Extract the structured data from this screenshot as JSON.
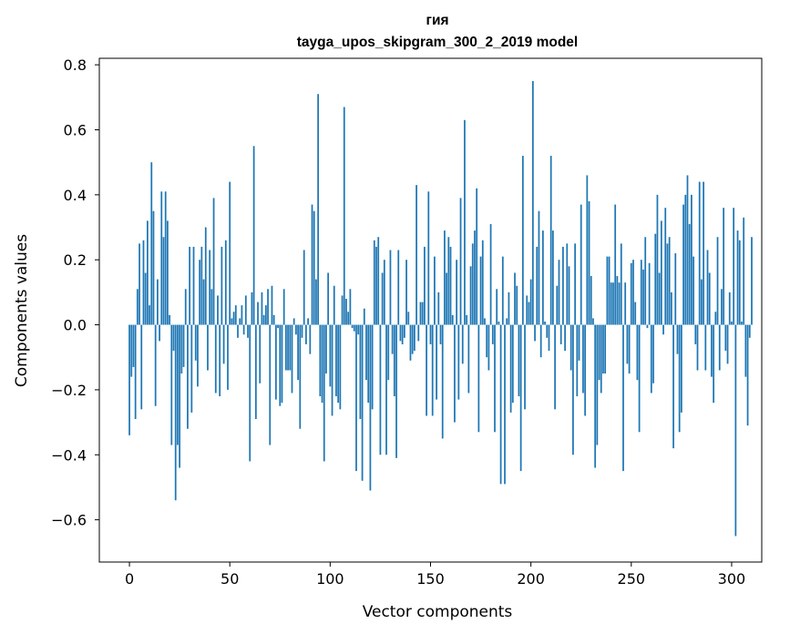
{
  "chart_data": {
    "type": "bar",
    "title": "гия",
    "subtitle": "tayga_upos_skipgram_300_2_2019 model",
    "xlabel": "Vector components",
    "ylabel": "Components values",
    "xlim": [
      -15,
      315
    ],
    "ylim": [
      -0.73,
      0.82
    ],
    "xticks": [
      0,
      50,
      100,
      150,
      200,
      250,
      300
    ],
    "xtick_labels": [
      "0",
      "50",
      "100",
      "150",
      "200",
      "250",
      "300"
    ],
    "yticks": [
      -0.6,
      -0.4,
      -0.2,
      0.0,
      0.2,
      0.4,
      0.6,
      0.8
    ],
    "ytick_labels": [
      "−0.6",
      "−0.4",
      "−0.2",
      "0.0",
      "0.2",
      "0.4",
      "0.6",
      "0.8"
    ],
    "grid": false,
    "bar_color": "#1f77b4",
    "values": [
      -0.34,
      -0.16,
      -0.13,
      -0.29,
      0.11,
      0.25,
      -0.26,
      0.26,
      0.16,
      0.32,
      0.06,
      0.5,
      0.35,
      -0.25,
      0.14,
      -0.05,
      0.41,
      0.27,
      0.41,
      0.32,
      0.03,
      -0.37,
      -0.08,
      -0.54,
      -0.37,
      -0.44,
      -0.15,
      -0.13,
      0.11,
      -0.32,
      0.24,
      -0.27,
      0.24,
      -0.11,
      -0.19,
      0.2,
      0.24,
      0.14,
      0.3,
      -0.14,
      0.23,
      0.11,
      0.39,
      -0.21,
      0.09,
      -0.22,
      0.24,
      -0.12,
      0.26,
      -0.2,
      0.44,
      0.02,
      0.04,
      0.06,
      -0.04,
      0.02,
      0.06,
      -0.03,
      0.09,
      -0.04,
      -0.42,
      0.1,
      0.55,
      -0.29,
      0.07,
      -0.18,
      0.1,
      0.03,
      0.06,
      0.11,
      -0.37,
      0.12,
      0.03,
      -0.23,
      -0.01,
      -0.25,
      -0.24,
      0.11,
      -0.14,
      -0.14,
      -0.14,
      -0.21,
      0.02,
      -0.03,
      -0.17,
      -0.32,
      -0.04,
      0.23,
      -0.06,
      0.02,
      -0.09,
      0.37,
      0.35,
      0.14,
      0.71,
      -0.22,
      -0.24,
      -0.42,
      -0.15,
      0.16,
      -0.19,
      -0.28,
      0.12,
      -0.22,
      -0.24,
      -0.26,
      0.09,
      0.67,
      0.08,
      0.04,
      0.11,
      -0.01,
      -0.02,
      -0.45,
      -0.03,
      -0.29,
      -0.48,
      0.05,
      -0.17,
      -0.24,
      -0.51,
      -0.26,
      0.26,
      0.24,
      0.27,
      -0.4,
      0.16,
      0.2,
      -0.4,
      -0.17,
      0.23,
      -0.09,
      -0.22,
      -0.41,
      0.23,
      -0.05,
      -0.06,
      -0.04,
      0.2,
      0.04,
      -0.11,
      -0.09,
      -0.08,
      0.43,
      -0.05,
      0.07,
      0.07,
      0.24,
      -0.28,
      0.41,
      -0.06,
      -0.28,
      0.21,
      -0.23,
      0.1,
      -0.06,
      -0.35,
      0.29,
      0.16,
      0.27,
      0.24,
      0.03,
      -0.3,
      0.2,
      -0.23,
      0.39,
      -0.12,
      0.63,
      0.03,
      -0.21,
      0.18,
      0.25,
      0.29,
      0.42,
      -0.33,
      0.21,
      0.26,
      0.02,
      -0.1,
      -0.14,
      0.31,
      -0.06,
      -0.33,
      0.11,
      0.01,
      -0.49,
      0.21,
      -0.49,
      0.02,
      0.1,
      -0.27,
      -0.24,
      0.16,
      0.12,
      -0.22,
      -0.45,
      0.52,
      -0.26,
      0.09,
      0.07,
      0.14,
      0.75,
      -0.05,
      0.24,
      0.35,
      -0.1,
      0.29,
      0.01,
      -0.04,
      -0.08,
      0.52,
      0.29,
      -0.26,
      0.12,
      0.2,
      -0.06,
      0.24,
      -0.08,
      0.25,
      0.18,
      -0.14,
      -0.4,
      0.25,
      -0.22,
      -0.11,
      0.37,
      -0.21,
      -0.28,
      0.46,
      0.38,
      0.15,
      0.02,
      -0.44,
      -0.37,
      -0.17,
      -0.21,
      -0.15,
      -0.15,
      0.21,
      0.21,
      0.13,
      0.13,
      0.37,
      0.15,
      0.13,
      0.25,
      -0.45,
      0.13,
      -0.12,
      -0.15,
      0.19,
      0.2,
      0.07,
      -0.17,
      -0.33,
      0.2,
      0.17,
      0.27,
      -0.01,
      0.19,
      -0.21,
      -0.18,
      0.28,
      0.4,
      0.16,
      0.32,
      -0.03,
      0.36,
      0.25,
      0.27,
      0.1,
      -0.38,
      0.22,
      -0.09,
      -0.33,
      -0.27,
      0.37,
      0.4,
      0.46,
      0.31,
      0.4,
      0.21,
      -0.06,
      -0.14,
      0.44,
      0.14,
      0.44,
      -0.14,
      0.23,
      0.16,
      -0.16,
      -0.24,
      0.04,
      0.27,
      -0.14,
      0.11,
      0.36,
      -0.08,
      -0.12,
      0.1,
      0.01,
      0.36,
      -0.65,
      0.29,
      0.26,
      0.01,
      0.33,
      -0.16,
      -0.31,
      -0.04,
      0.27
    ]
  }
}
